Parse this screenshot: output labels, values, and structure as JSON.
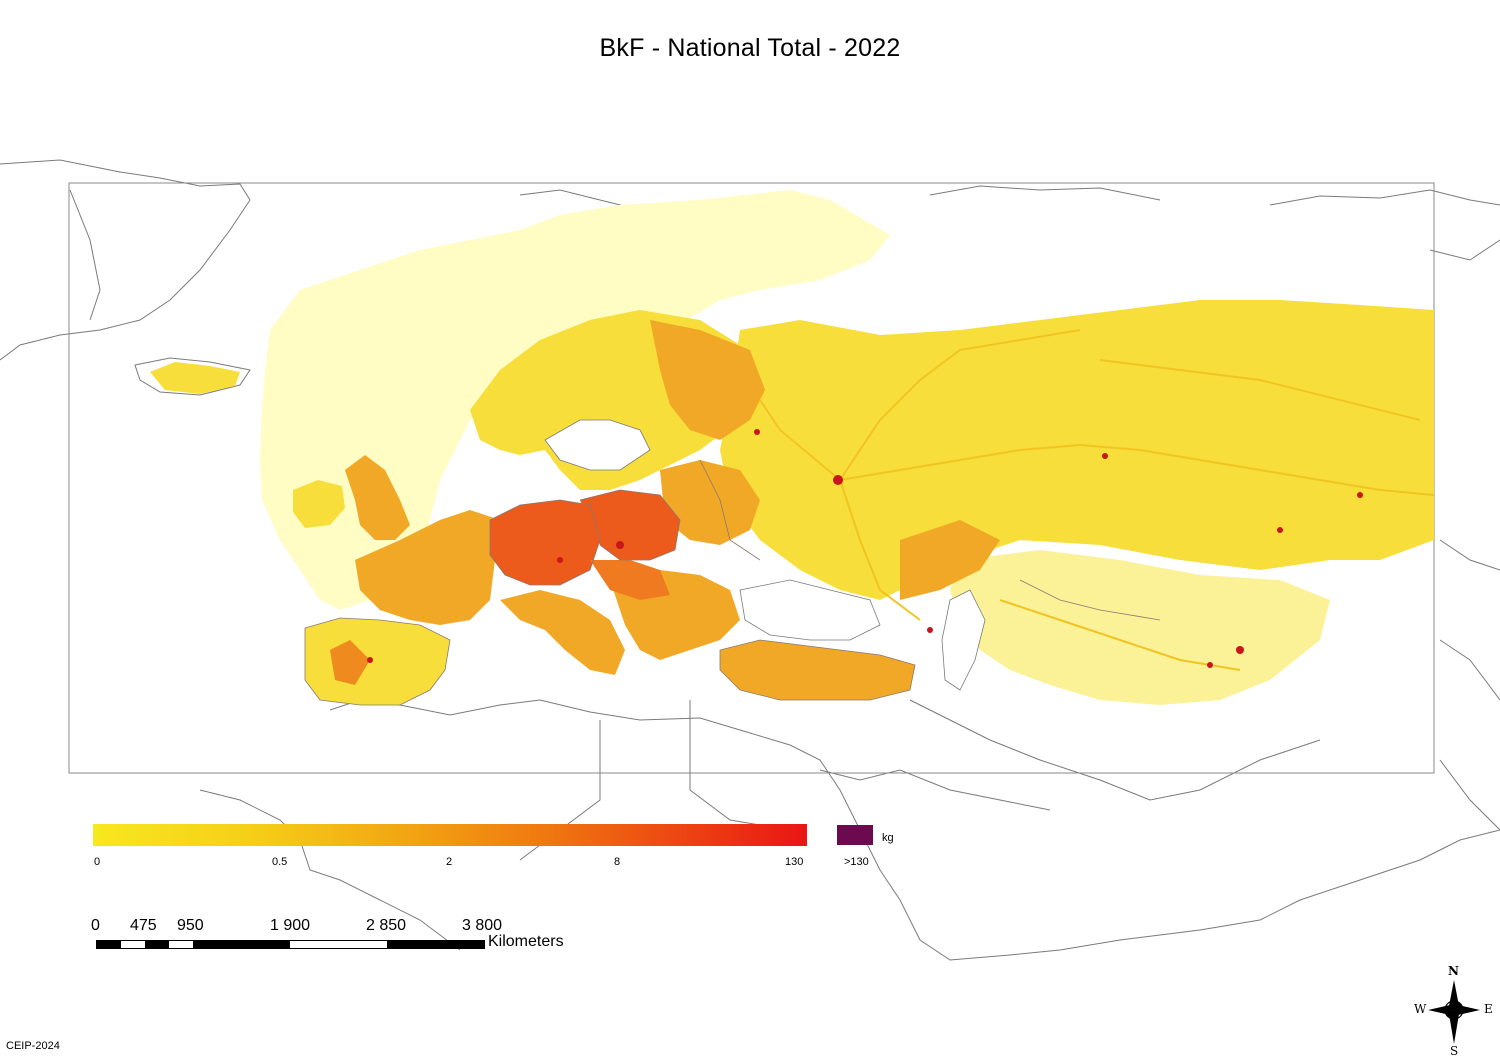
{
  "title": "BkF - National Total - 2022",
  "legend": {
    "ticks": [
      "0",
      "0.5",
      "2",
      "8",
      "130"
    ],
    "over_label": ">130",
    "unit": "kg",
    "colors": {
      "low": "#f7e81f",
      "high": "#ea1514",
      "over": "#6b0a4e"
    }
  },
  "scale": {
    "numbers": [
      "0",
      "475",
      "950",
      "1 900",
      "2 850",
      "3 800"
    ],
    "unit": "Kilometers"
  },
  "compass": {
    "n": "N",
    "s": "S",
    "e": "E",
    "w": "W"
  },
  "credit": "CEIP-2024",
  "map_colors": {
    "sea_fill": "#fffcc4",
    "grid_yellow": "#f7de3a",
    "grid_orange": "#f0a826",
    "grid_red": "#ec5a1c",
    "hotspot": "#c8161b",
    "coastline": "#7a7a7a"
  }
}
